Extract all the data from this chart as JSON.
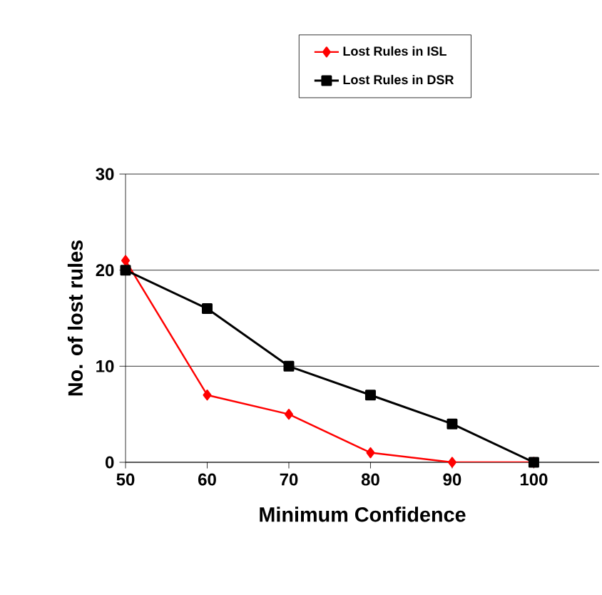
{
  "chart_data": {
    "type": "line",
    "xlabel": "Minimum Confidence",
    "ylabel": "No. of lost rules",
    "x": [
      50,
      60,
      70,
      80,
      90,
      100
    ],
    "series": [
      {
        "name": "Lost Rules in ISL",
        "color": "#ff0000",
        "marker": "diamond",
        "values": [
          21,
          7,
          5,
          1,
          0,
          0
        ]
      },
      {
        "name": "Lost Rules in DSR",
        "color": "#000000",
        "marker": "square",
        "values": [
          20,
          16,
          10,
          7,
          4,
          0
        ]
      }
    ],
    "xlim": [
      50,
      108
    ],
    "xticks": [
      50,
      60,
      70,
      80,
      90,
      100
    ],
    "ylim": [
      0,
      30
    ],
    "yticks": [
      0,
      10,
      20,
      30
    ],
    "grid": "y",
    "legend": "top",
    "line_style": "solid"
  }
}
